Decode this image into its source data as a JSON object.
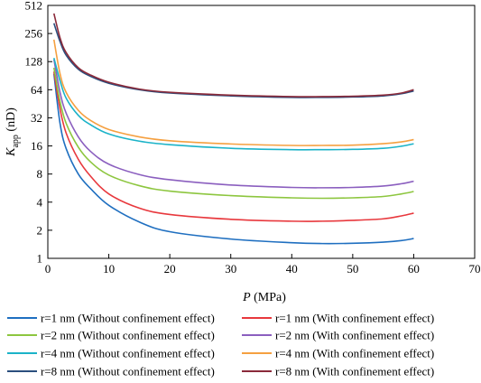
{
  "chart_data": {
    "type": "line",
    "title": "",
    "xlabel": "P (MPa)",
    "xlabel_var": "P",
    "xlabel_unit": "(MPa)",
    "ylabel_var": "K",
    "ylabel_sub": "app",
    "ylabel_unit": "(nD)",
    "xlim": [
      0,
      70
    ],
    "ylim": [
      1,
      512
    ],
    "yscale": "log2",
    "grid": false,
    "legend_placement": "bottom",
    "x_ticks": [
      "0",
      "10",
      "20",
      "30",
      "40",
      "50",
      "60",
      "70"
    ],
    "y_ticks": [
      "1",
      "2",
      "4",
      "8",
      "16",
      "32",
      "64",
      "128",
      "256",
      "512"
    ],
    "x": [
      1,
      2,
      3,
      5,
      7,
      10,
      15,
      20,
      30,
      40,
      45,
      50,
      55,
      58,
      60
    ],
    "series": [
      {
        "name": "r=1 nm (Without confinement effect)",
        "color": "#1f6fc0",
        "values": [
          95,
          28,
          15,
          8.0,
          5.6,
          3.7,
          2.45,
          1.93,
          1.61,
          1.47,
          1.44,
          1.45,
          1.49,
          1.55,
          1.63
        ]
      },
      {
        "name": "r=1 nm (With confinement effect)",
        "color": "#e8383d",
        "values": [
          100,
          40,
          22,
          11.5,
          7.6,
          4.9,
          3.45,
          2.95,
          2.62,
          2.5,
          2.5,
          2.55,
          2.65,
          2.85,
          3.05
        ]
      },
      {
        "name": "r=2 nm (Without confinement effect)",
        "color": "#8dc63f",
        "values": [
          110,
          48,
          28,
          15.5,
          10.8,
          7.8,
          6.0,
          5.25,
          4.7,
          4.45,
          4.4,
          4.45,
          4.6,
          4.9,
          5.2
        ]
      },
      {
        "name": "r=2 nm (With confinement effect)",
        "color": "#8b5fbf",
        "values": [
          135,
          60,
          36,
          20,
          14,
          10.2,
          7.9,
          6.95,
          6.1,
          5.75,
          5.7,
          5.75,
          5.95,
          6.3,
          6.7
        ]
      },
      {
        "name": "r=4 nm (Without confinement effect)",
        "color": "#1bb3c8",
        "values": [
          140,
          80,
          52,
          34,
          27,
          21.5,
          18,
          16.5,
          15.1,
          14.6,
          14.6,
          14.7,
          15.1,
          15.9,
          16.9
        ]
      },
      {
        "name": "r=4 nm (With confinement effect)",
        "color": "#f5a040",
        "values": [
          220,
          95,
          60,
          38.5,
          30,
          24,
          20,
          18.2,
          16.8,
          16.2,
          16.2,
          16.3,
          16.9,
          17.7,
          18.7
        ]
      },
      {
        "name": "r=8 nm (Without confinement effect)",
        "color": "#2b4f7e",
        "values": [
          330,
          210,
          150,
          106,
          89,
          75,
          64,
          59,
          55,
          53,
          53,
          53.5,
          55,
          58,
          62
        ]
      },
      {
        "name": "r=8 nm (With confinement effect)",
        "color": "#8b2a3a",
        "values": [
          420,
          230,
          160,
          110,
          92,
          77,
          65,
          60,
          56,
          54,
          54,
          54.5,
          56,
          59,
          64
        ]
      }
    ]
  }
}
